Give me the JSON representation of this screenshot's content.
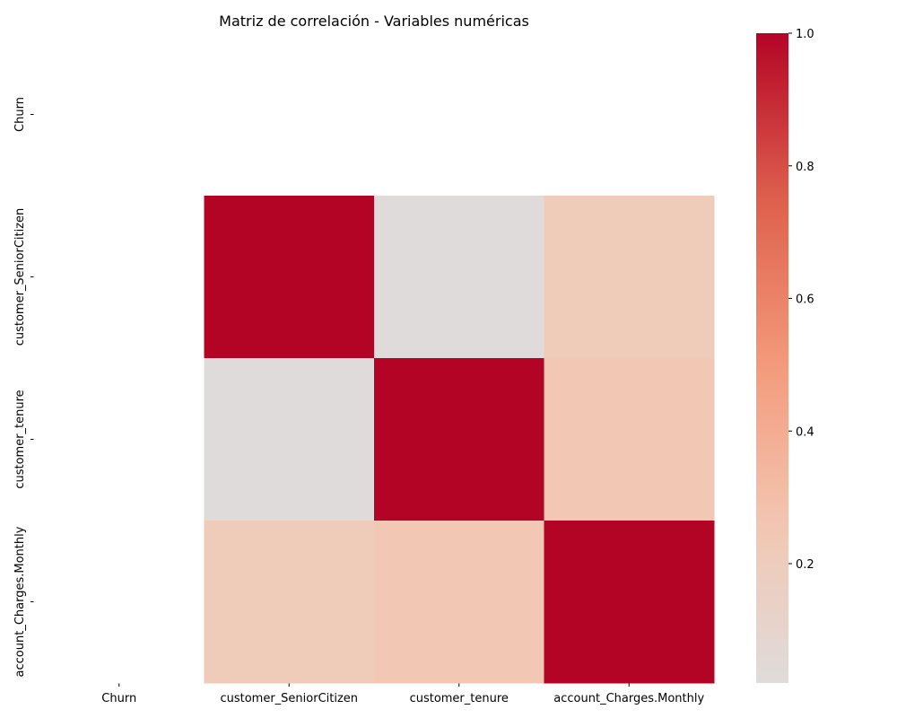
{
  "chart_data": {
    "type": "heatmap",
    "title": "Matriz de correlación - Variables numéricas",
    "xlabel": "",
    "ylabel": "",
    "x_categories": [
      "Churn",
      "customer_SeniorCitizen",
      "customer_tenure",
      "account_Charges.Monthly"
    ],
    "y_categories": [
      "Churn",
      "customer_SeniorCitizen",
      "customer_tenure",
      "account_Charges.Monthly"
    ],
    "matrix": [
      [
        null,
        null,
        null,
        null
      ],
      [
        null,
        1.0,
        0.02,
        0.22
      ],
      [
        null,
        0.02,
        1.0,
        0.25
      ],
      [
        null,
        0.22,
        0.25,
        1.0
      ]
    ],
    "colormap": "coolwarm",
    "colorbar": {
      "range": [
        0.02,
        1.0
      ],
      "ticks": [
        0.2,
        0.4,
        0.6,
        0.8,
        1.0
      ],
      "tick_labels": [
        "0.2",
        "0.4",
        "0.6",
        "0.8",
        "1.0"
      ]
    },
    "grid": false
  }
}
